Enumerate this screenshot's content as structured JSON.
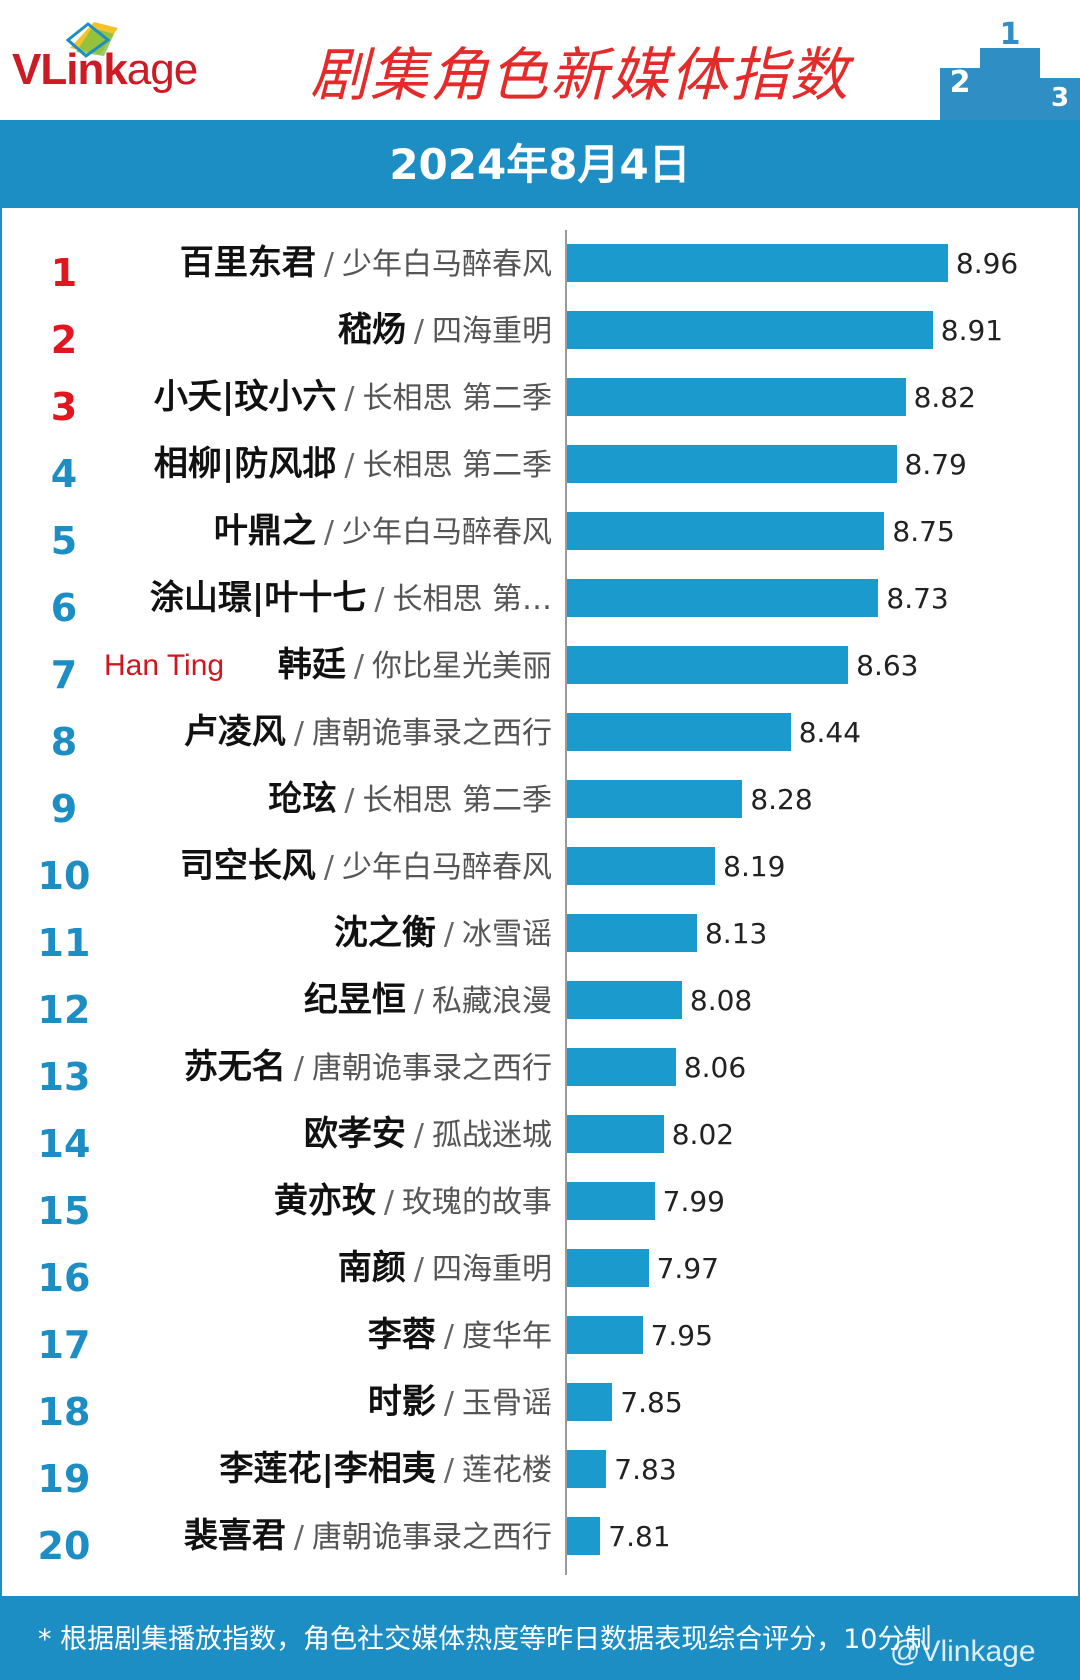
{
  "brand": {
    "logo_text_1": "VLink",
    "logo_text_2": "age"
  },
  "header": {
    "title": "剧集角色新媒体指数",
    "date": "2024年8月4日"
  },
  "colors": {
    "bar": "#1b9bcd",
    "brand_blue": "#1c8ec4",
    "rank_top": "#e0171f",
    "title_red": "#e52a2a"
  },
  "chart_data": {
    "type": "bar",
    "orientation": "horizontal",
    "title": "剧集角色新媒体指数",
    "subtitle": "2024年8月4日",
    "ranks": [
      "1",
      "2",
      "3",
      "4",
      "5",
      "6",
      "7",
      "8",
      "9",
      "10",
      "11",
      "12",
      "13",
      "14",
      "15",
      "16",
      "17",
      "18",
      "19",
      "20"
    ],
    "categories": [
      "百里东君",
      "嵇炀",
      "小夭|玟小六",
      "相柳|防风邶",
      "叶鼎之",
      "涂山璟|叶十七",
      "韩廷",
      "卢凌风",
      "玱玹",
      "司空长风",
      "沈之衡",
      "纪昱恒",
      "苏无名",
      "欧孝安",
      "黄亦玫",
      "南颜",
      "李蓉",
      "时影",
      "李莲花|李相夷",
      "裴喜君"
    ],
    "shows": [
      "少年白马醉春风",
      "四海重明",
      "长相思 第二季",
      "长相思 第二季",
      "少年白马醉春风",
      "长相思 第…",
      "你比星光美丽",
      "唐朝诡事录之西行",
      "长相思 第二季",
      "少年白马醉春风",
      "冰雪谣",
      "私藏浪漫",
      "唐朝诡事录之西行",
      "孤战迷城",
      "玫瑰的故事",
      "四海重明",
      "度华年",
      "玉骨谣",
      "莲花楼",
      "唐朝诡事录之西行"
    ],
    "values": [
      8.96,
      8.91,
      8.82,
      8.79,
      8.75,
      8.73,
      8.63,
      8.44,
      8.28,
      8.19,
      8.13,
      8.08,
      8.06,
      8.02,
      7.99,
      7.97,
      7.95,
      7.85,
      7.83,
      7.81
    ],
    "value_labels": [
      "8.96",
      "8.91",
      "8.82",
      "8.79",
      "8.75",
      "8.73",
      "8.63",
      "8.44",
      "8.28",
      "8.19",
      "8.13",
      "8.08",
      "8.06",
      "8.02",
      "7.99",
      "7.97",
      "7.95",
      "7.85",
      "7.83",
      "7.81"
    ],
    "xlim": [
      7.7,
      9.0
    ],
    "annotations": [
      {
        "row": 6,
        "text": "Han Ting"
      }
    ],
    "grid": false,
    "legend": "none"
  },
  "footer": {
    "note": "* 根据剧集播放指数，角色社交媒体热度等昨日数据表现综合评分，10分制",
    "watermark": "@Vlinkage"
  }
}
